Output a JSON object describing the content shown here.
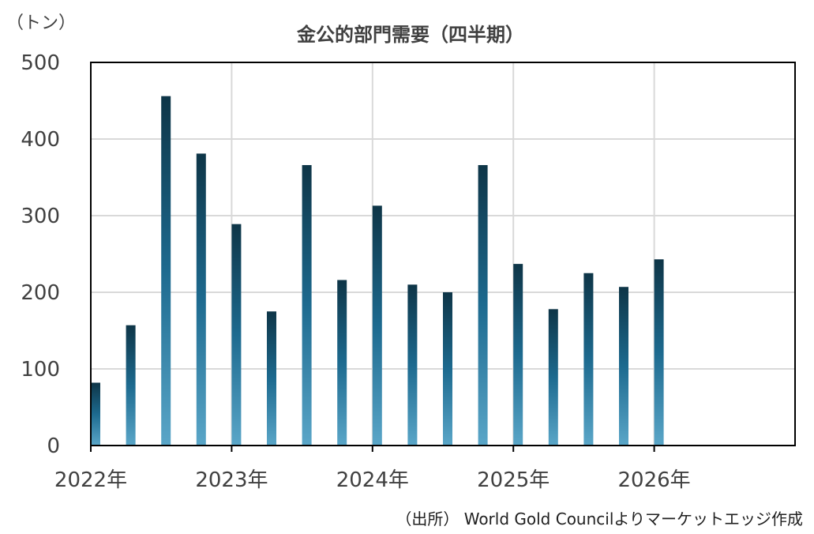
{
  "chart_data": {
    "type": "bar",
    "title": "金公的部門需要（四半期）",
    "unit_label": "（トン）",
    "source": "（出所） World Gold Councilよりマーケットエッジ作成",
    "ylim": [
      0,
      500
    ],
    "yticks": [
      "0",
      "100",
      "200",
      "300",
      "400",
      "500"
    ],
    "ytick_values": [
      0,
      100,
      200,
      300,
      400,
      500
    ],
    "xtick_labels": [
      "2022年",
      "2023年",
      "2024年",
      "2025年",
      "2026年"
    ],
    "categories": [
      "2022Q1",
      "2022Q2",
      "2022Q3",
      "2022Q4",
      "2023Q1",
      "2023Q2",
      "2023Q3",
      "2023Q4",
      "2024Q1",
      "2024Q2",
      "2024Q3",
      "2024Q4",
      "2025Q1",
      "2025Q2",
      "2025Q3",
      "2025Q4",
      "2026Q1"
    ],
    "values": [
      82,
      157,
      456,
      381,
      289,
      175,
      366,
      216,
      313,
      210,
      200,
      366,
      237,
      178,
      225,
      207,
      243
    ],
    "x_slots": 20,
    "grid": true,
    "colors": {
      "bar_top": "#0e3547",
      "bar_mid": "#1d6a8f",
      "bar_bottom": "#5aa6c8",
      "grid": "#d9d9d9",
      "axis": "#000000"
    }
  }
}
